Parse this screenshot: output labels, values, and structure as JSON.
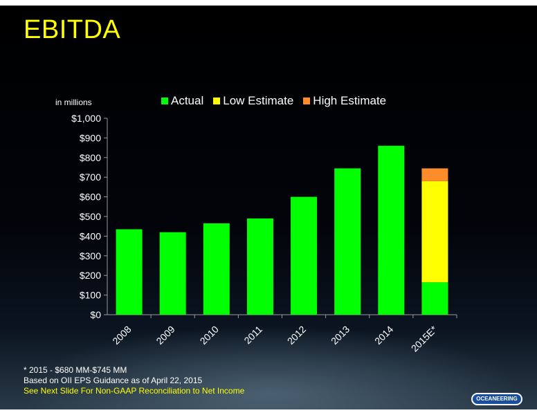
{
  "slide": {
    "title": "EBITDA"
  },
  "chart_data": {
    "type": "bar",
    "stacked": true,
    "units_label": "in millions",
    "categories": [
      "2008",
      "2009",
      "2010",
      "2011",
      "2012",
      "2013",
      "2014",
      "2015E*"
    ],
    "series": [
      {
        "name": "Actual",
        "color": "#00ff00",
        "values": [
          435,
          420,
          465,
          490,
          600,
          745,
          860,
          165
        ]
      },
      {
        "name": "Low Estimate",
        "color": "#ffff00",
        "values": [
          0,
          0,
          0,
          0,
          0,
          0,
          0,
          515
        ]
      },
      {
        "name": "High Estimate",
        "color": "#ff8c2a",
        "values": [
          0,
          0,
          0,
          0,
          0,
          0,
          0,
          65
        ]
      }
    ],
    "ylim": [
      0,
      1000
    ],
    "yticks": [
      0,
      100,
      200,
      300,
      400,
      500,
      600,
      700,
      800,
      900,
      1000
    ],
    "ytick_labels": [
      "$0",
      "$100",
      "$200",
      "$300",
      "$400",
      "$500",
      "$600",
      "$700",
      "$800",
      "$900",
      "$1,000"
    ],
    "legend_position": "top",
    "grid": false
  },
  "footer": {
    "note": "* 2015 - $680 MM-$745 MM",
    "guidance": "Based on OII EPS Guidance as of April 22, 2015",
    "link": "See Next Slide For Non-GAAP Reconciliation to Net Income"
  },
  "logo": {
    "text": "OCEANEERING"
  }
}
